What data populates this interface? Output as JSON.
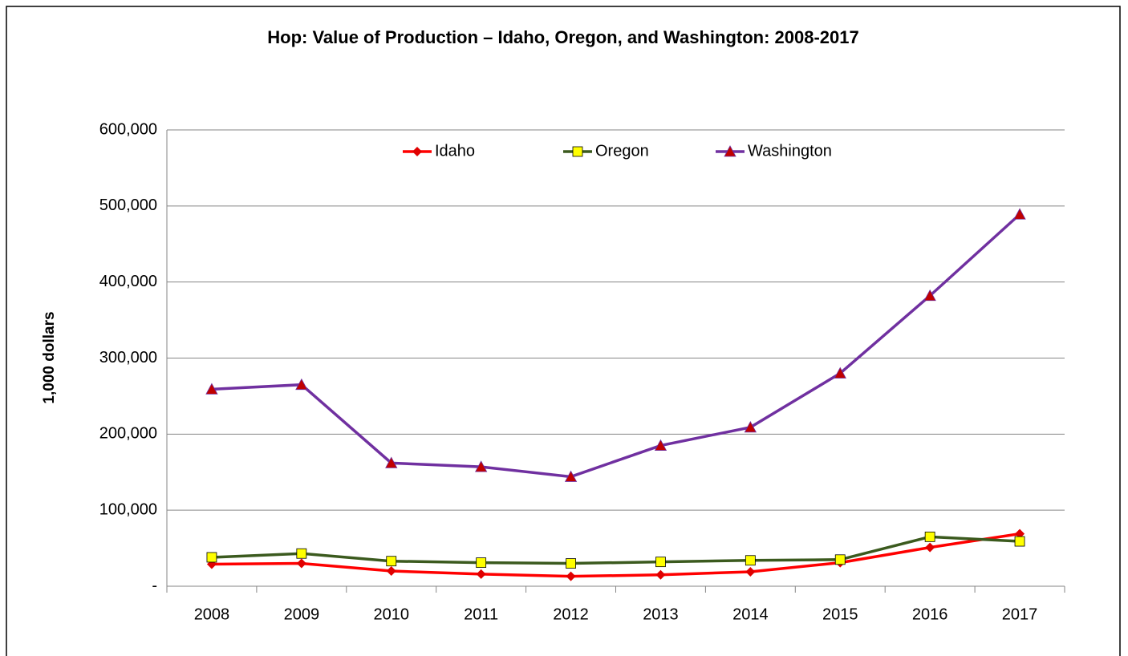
{
  "chart_data": {
    "type": "line",
    "title": "Hop: Value of Production – Idaho, Oregon, and Washington: 2008-2017",
    "y_label": "1,000 dollars",
    "categories": [
      "2008",
      "2009",
      "2010",
      "2011",
      "2012",
      "2013",
      "2014",
      "2015",
      "2016",
      "2017"
    ],
    "series": [
      {
        "name": "Idaho",
        "color": "#ff0000",
        "marker": "diamond",
        "marker_color": "#e00000",
        "values": [
          29000,
          30000,
          20000,
          16000,
          13000,
          15000,
          19000,
          31000,
          51000,
          69000
        ]
      },
      {
        "name": "Oregon",
        "color": "#3b5a1e",
        "marker": "square",
        "marker_color": "#ffff00",
        "values": [
          38000,
          43000,
          33000,
          31000,
          30000,
          32000,
          34000,
          35000,
          65000,
          59000
        ]
      },
      {
        "name": "Washington",
        "color": "#7030a0",
        "marker": "triangle",
        "marker_color": "#c00000",
        "values": [
          259000,
          265000,
          162000,
          157000,
          144000,
          185000,
          209000,
          280000,
          382000,
          489000
        ]
      }
    ],
    "ylim": [
      0,
      600000
    ],
    "yticks": [
      {
        "value": 0,
        "label": "-"
      },
      {
        "value": 100000,
        "label": "100,000"
      },
      {
        "value": 200000,
        "label": "200,000"
      },
      {
        "value": 300000,
        "label": "300,000"
      },
      {
        "value": 400000,
        "label": "400,000"
      },
      {
        "value": 500000,
        "label": "500,000"
      },
      {
        "value": 600000,
        "label": "600,000"
      }
    ],
    "grid": true,
    "legend": "top"
  }
}
